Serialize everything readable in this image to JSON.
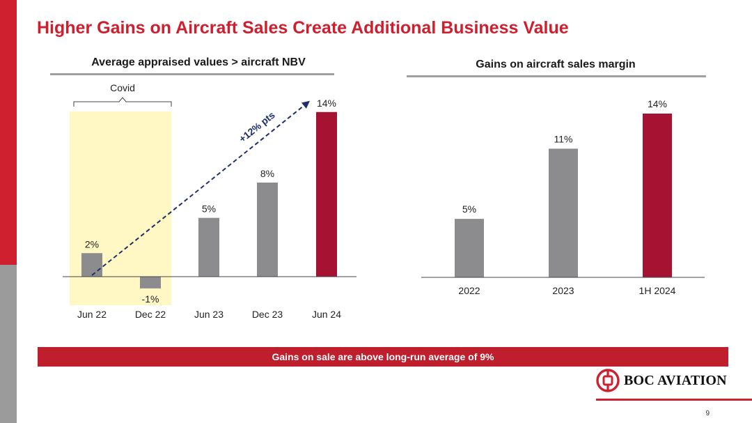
{
  "slide": {
    "title": "Higher Gains on Aircraft Sales Create Additional Business Value",
    "page_number": "9",
    "brand_red": "#cf2030"
  },
  "left_chart": {
    "heading": "Average appraised values > aircraft NBV"
  },
  "right_chart": {
    "heading": "Gains on aircraft sales margin"
  },
  "banner": {
    "text": "Gains on sale are above long-run average of 9%"
  },
  "logo": {
    "text": "BOC AVIATION"
  },
  "chart_data": [
    {
      "type": "bar",
      "title": "Average appraised values > aircraft NBV",
      "categories": [
        "Jun 22",
        "Dec 22",
        "Jun 23",
        "Dec 23",
        "Jun 24"
      ],
      "values": [
        2,
        -1,
        5,
        8,
        14
      ],
      "labels": [
        "2%",
        "-1%",
        "5%",
        "8%",
        "14%"
      ],
      "colors": [
        "#8c8c8f",
        "#8c8c8f",
        "#8c8c8f",
        "#8c8c8f",
        "#a51232"
      ],
      "ylim": [
        -2.5,
        14
      ],
      "xlabel": "",
      "ylabel": "",
      "annotations": {
        "highlight_label": "Covid",
        "highlight_categories": [
          "Jun 22",
          "Dec 22"
        ],
        "highlight_color": "#fff8c4",
        "arrow_label": "+12% pts",
        "arrow_from": {
          "category": "Jun 22",
          "value": 0
        },
        "arrow_to": {
          "category": "Jun 24",
          "value": 14
        },
        "arrow_color": "#1f2f6b"
      }
    },
    {
      "type": "bar",
      "title": "Gains on aircraft sales margin",
      "categories": [
        "2022",
        "2023",
        "1H 2024"
      ],
      "values": [
        5,
        11,
        14
      ],
      "labels": [
        "5%",
        "11%",
        "14%"
      ],
      "colors": [
        "#8c8c8f",
        "#8c8c8f",
        "#a51232"
      ],
      "ylim": [
        0,
        14
      ],
      "xlabel": "",
      "ylabel": ""
    }
  ]
}
